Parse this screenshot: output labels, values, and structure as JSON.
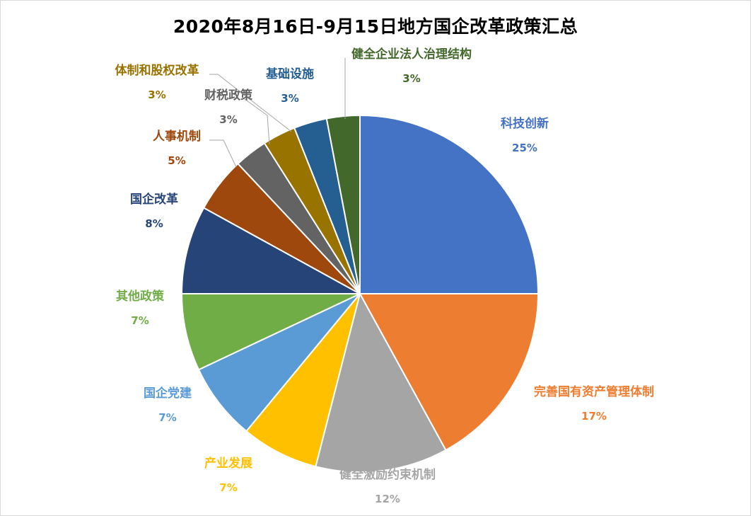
{
  "chart_data": {
    "type": "pie",
    "title": "2020年8月16日-9月15日地方国企改革政策汇总",
    "series": [
      {
        "name": "",
        "slices": [
          {
            "label": "科技创新",
            "value": 25,
            "pct": "25%",
            "color": "#4472C4"
          },
          {
            "label": "完善国有资产管理体制",
            "value": 17,
            "pct": "17%",
            "color": "#ED7D31"
          },
          {
            "label": "健全激励约束机制",
            "value": 12,
            "pct": "12%",
            "color": "#A5A5A5"
          },
          {
            "label": "产业发展",
            "value": 7,
            "pct": "7%",
            "color": "#FFC000"
          },
          {
            "label": "国企党建",
            "value": 7,
            "pct": "7%",
            "color": "#5B9BD5"
          },
          {
            "label": "其他政策",
            "value": 7,
            "pct": "7%",
            "color": "#70AD47"
          },
          {
            "label": "国企改革",
            "value": 8,
            "pct": "8%",
            "color": "#264478"
          },
          {
            "label": "人事机制",
            "value": 5,
            "pct": "5%",
            "color": "#9E480E"
          },
          {
            "label": "财税政策",
            "value": 3,
            "pct": "3%",
            "color": "#636363"
          },
          {
            "label": "体制和股权改革",
            "value": 3,
            "pct": "3%",
            "color": "#997300"
          },
          {
            "label": "基础设施",
            "value": 3,
            "pct": "3%",
            "color": "#255E91"
          },
          {
            "label": "健全企业法人治理结构",
            "value": 3,
            "pct": "3%",
            "color": "#43682B"
          }
        ]
      }
    ],
    "start_angle": "12-o'clock",
    "direction": "clockwise",
    "legend": "none",
    "data_labels": "outside with category name and percentage"
  }
}
